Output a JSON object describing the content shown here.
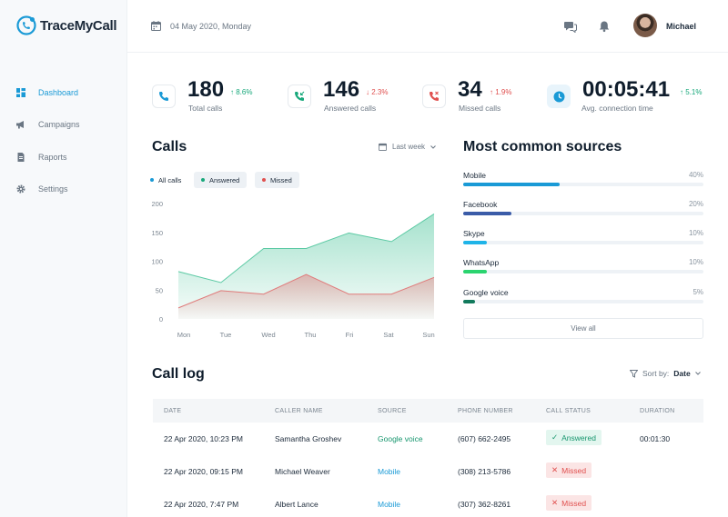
{
  "app": {
    "name": "TraceMyCall"
  },
  "sidebar": {
    "items": [
      {
        "label": "Dashboard",
        "icon": "dashboard-icon",
        "active": true
      },
      {
        "label": "Campaigns",
        "icon": "megaphone-icon",
        "active": false
      },
      {
        "label": "Raports",
        "icon": "report-icon",
        "active": false
      },
      {
        "label": "Settings",
        "icon": "gear-icon",
        "active": false
      }
    ]
  },
  "header": {
    "date": "04 May 2020, Monday",
    "user_name": "Michael"
  },
  "stats": [
    {
      "value": "180",
      "delta": "↑ 8.6%",
      "direction": "up",
      "label": "Total calls",
      "icon": "phone-icon"
    },
    {
      "value": "146",
      "delta": "↓ 2.3%",
      "direction": "down",
      "label": "Answered calls",
      "icon": "phone-incoming-icon"
    },
    {
      "value": "34",
      "delta": "↑ 1.9%",
      "direction": "down",
      "label": "Missed calls",
      "icon": "phone-missed-icon"
    },
    {
      "value": "00:05:41",
      "delta": "↑ 5.1%",
      "direction": "up",
      "label": "Avg. connection time",
      "icon": "clock-icon"
    }
  ],
  "calls": {
    "title": "Calls",
    "period": "Last week",
    "legend": [
      {
        "label": "All calls",
        "color": "#1a9ad6"
      },
      {
        "label": "Answered",
        "color": "#18a87b"
      },
      {
        "label": "Missed",
        "color": "#e0504f"
      }
    ]
  },
  "chart_data": {
    "type": "area",
    "categories": [
      "Mon",
      "Tue",
      "Wed",
      "Thu",
      "Fri",
      "Sat",
      "Sun"
    ],
    "series": [
      {
        "name": "Answered",
        "color": "#5ccaa4",
        "values": [
          82,
          63,
          122,
          122,
          149,
          134,
          182
        ]
      },
      {
        "name": "Missed",
        "color": "#e07b7b",
        "values": [
          19,
          49,
          43,
          77,
          43,
          43,
          72
        ]
      }
    ],
    "yticks": [
      0,
      50,
      100,
      150,
      200
    ],
    "ylim": [
      0,
      200
    ],
    "grid": false
  },
  "sources": {
    "title": "Most common sources",
    "items": [
      {
        "name": "Mobile",
        "pct": "40%",
        "value": 40,
        "color": "#1a9ad6"
      },
      {
        "name": "Facebook",
        "pct": "20%",
        "value": 20,
        "color": "#3b5ca8"
      },
      {
        "name": "Skype",
        "pct": "10%",
        "value": 10,
        "color": "#1fb4e8"
      },
      {
        "name": "WhatsApp",
        "pct": "10%",
        "value": 10,
        "color": "#2bd46f"
      },
      {
        "name": "Google voice",
        "pct": "5%",
        "value": 5,
        "color": "#127a5c"
      }
    ],
    "view_all": "View all"
  },
  "call_log": {
    "title": "Call log",
    "sort_label": "Sort by:",
    "sort_value": "Date",
    "columns": [
      "DATE",
      "CALLER NAME",
      "SOURCE",
      "PHONE NUMBER",
      "CALL STATUS",
      "DURATION"
    ],
    "rows": [
      {
        "date": "22 Apr 2020, 10:23 PM",
        "caller": "Samantha Groshev",
        "source": "Google voice",
        "phone": "(607) 662-2495",
        "status": "Answered",
        "status_mark": "✓",
        "duration": "00:01:30"
      },
      {
        "date": "22 Apr 2020, 09:15 PM",
        "caller": "Michael Weaver",
        "source": "Mobile",
        "phone": "(308) 213-5786",
        "status": "Missed",
        "status_mark": "✕",
        "duration": ""
      },
      {
        "date": "22 Apr 2020, 7:47 PM",
        "caller": "Albert Lance",
        "source": "Mobile",
        "phone": "(307) 362-8261",
        "status": "Missed",
        "status_mark": "✕",
        "duration": ""
      }
    ]
  }
}
